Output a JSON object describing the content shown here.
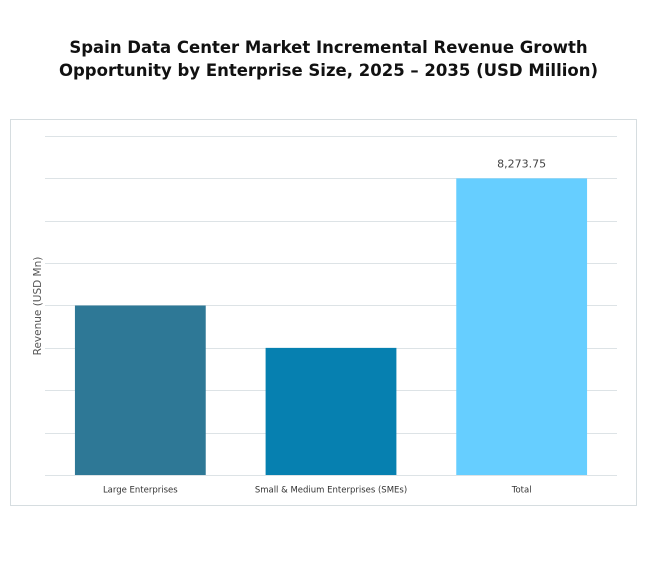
{
  "chart_data": {
    "type": "bar",
    "title": "Spain Data Center Market Incremental Revenue Growth Opportunity by Enterprise Size, 2025 – 2035 (USD Million)",
    "y_label": "Revenue (USD Mn)",
    "categories": [
      "Large Enterprises",
      "Small & Medium Enterprises (SMEs)",
      "Total"
    ],
    "values": [
      4727.86,
      3545.89,
      8273.75
    ],
    "value_labels": [
      null,
      null,
      "8,273.75"
    ],
    "colors": [
      "#2e7896",
      "#0680b0",
      "#66ceff"
    ],
    "ylim": [
      0,
      9455.71
    ],
    "yticks": [
      0,
      1181.96,
      2363.93,
      3545.89,
      4727.86,
      5909.82,
      7091.79,
      8273.75,
      9455.71
    ],
    "grid": true
  }
}
